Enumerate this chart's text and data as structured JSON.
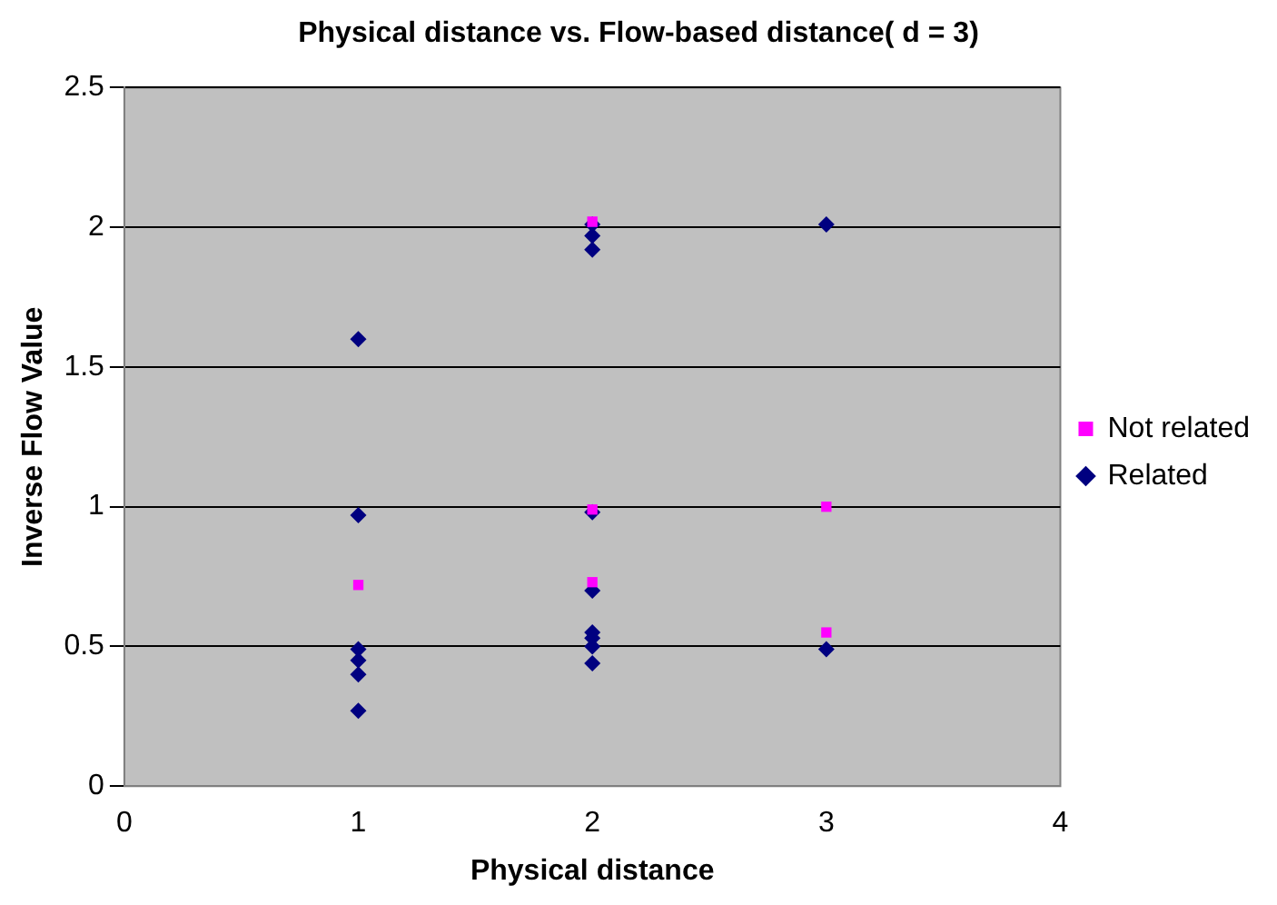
{
  "chart_data": {
    "type": "scatter",
    "title": "Physical distance vs. Flow-based distance( d = 3)",
    "xlabel": "Physical distance",
    "ylabel": "Inverse Flow Value",
    "xlim": [
      0,
      4
    ],
    "xticks": [
      0,
      1,
      2,
      3,
      4
    ],
    "ylim": [
      0,
      2.5
    ],
    "yticks": [
      0,
      0.5,
      1,
      1.5,
      2,
      2.5
    ],
    "grid": "y",
    "legend": "right",
    "series": [
      {
        "name": "Related",
        "color": "#000080",
        "marker": "diamond",
        "x": [
          1,
          1,
          1,
          1,
          1,
          1,
          2,
          2,
          2,
          2,
          2,
          2,
          2,
          2,
          2,
          3,
          3
        ],
        "values": [
          1.6,
          0.97,
          0.49,
          0.45,
          0.4,
          0.27,
          2.01,
          1.97,
          1.92,
          0.98,
          0.7,
          0.55,
          0.53,
          0.5,
          0.44,
          2.01,
          0.49
        ]
      },
      {
        "name": "Not related",
        "color": "#ff00ff",
        "marker": "square",
        "x": [
          1,
          2,
          2,
          2,
          3,
          3
        ],
        "values": [
          0.72,
          2.02,
          0.99,
          0.73,
          1.0,
          0.55
        ]
      }
    ]
  }
}
